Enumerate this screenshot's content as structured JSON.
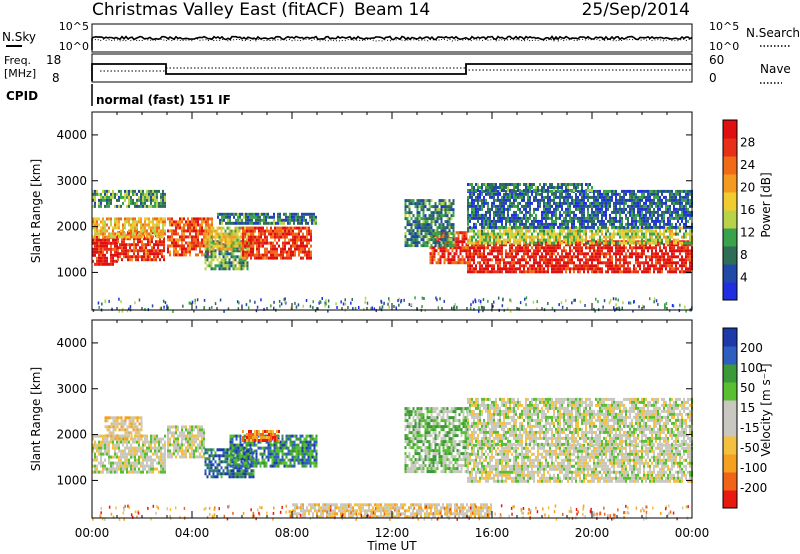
{
  "header": {
    "title": "Christmas Valley East (fitACF)",
    "beam": "Beam 14",
    "date": "25/Sep/2014"
  },
  "aux": {
    "nsky_label": "N.Sky",
    "nsearch_label": "N.Search",
    "freq_label_line1": "Freq.",
    "freq_label_line2": "[MHz]",
    "nave_label": "Nave",
    "cpid_label": "CPID",
    "cpid_value": "normal (fast) 151 IF",
    "noise_ticks_left": [
      "10^5",
      "10^0"
    ],
    "noise_ticks_right": [
      "10^5",
      "10^0"
    ],
    "freq_ticks": [
      "18",
      "8"
    ],
    "nave_ticks": [
      "60",
      "0"
    ]
  },
  "panels": {
    "ylabel": "Slant Range [km]",
    "xlabel": "Time UT",
    "power_cbar_label": "Power [dB]",
    "velocity_cbar_label": "Velocity [m s⁻¹]",
    "y_ticks": [
      "4000",
      "3000",
      "2000",
      "1000"
    ],
    "x_ticks": [
      "00:00",
      "04:00",
      "08:00",
      "12:00",
      "16:00",
      "20:00",
      "00:00"
    ]
  },
  "colors": {
    "power": [
      "#1f2fe0",
      "#2349a8",
      "#2f6e56",
      "#3aa24a",
      "#b8d24a",
      "#f0cc30",
      "#f49a20",
      "#f06a18",
      "#e83018",
      "#e01010"
    ],
    "velocity": [
      "#e81a10",
      "#f06418",
      "#f4a020",
      "#f4c040",
      "#c8c8c0",
      "#c8c8c0",
      "#58c030",
      "#3a9a38",
      "#2d5fc0",
      "#1d3aa8"
    ]
  },
  "chart_data": [
    {
      "type": "heatmap",
      "name": "power",
      "x": [
        0,
        24
      ],
      "ylim": [
        180,
        4500
      ],
      "colorbar": {
        "title": "Power [dB]",
        "ticks": [
          4,
          8,
          12,
          16,
          20,
          24,
          28
        ],
        "range": [
          0,
          30
        ]
      },
      "regions": [
        {
          "t0": 0.0,
          "t1": 1.0,
          "r0": 1200,
          "r1": 1800,
          "level": 28
        },
        {
          "t0": 1.0,
          "t1": 2.9,
          "r0": 1300,
          "r1": 1900,
          "level": 26
        },
        {
          "t0": 0.0,
          "t1": 2.9,
          "r0": 1800,
          "r1": 2200,
          "level": 18
        },
        {
          "t0": 0.0,
          "t1": 2.9,
          "r0": 2450,
          "r1": 2800,
          "level": 10
        },
        {
          "t0": 3.0,
          "t1": 4.8,
          "r0": 1400,
          "r1": 2200,
          "level": 24
        },
        {
          "t0": 4.5,
          "t1": 6.2,
          "r0": 1050,
          "r1": 1700,
          "level": 10
        },
        {
          "t0": 4.5,
          "t1": 6.5,
          "r0": 1500,
          "r1": 2000,
          "level": 16
        },
        {
          "t0": 6.0,
          "t1": 8.8,
          "r0": 1300,
          "r1": 2000,
          "level": 26
        },
        {
          "t0": 5.0,
          "t1": 9.0,
          "r0": 2100,
          "r1": 2300,
          "level": 8
        },
        {
          "t0": 13.5,
          "t1": 15.0,
          "r0": 1200,
          "r1": 1900,
          "level": 26
        },
        {
          "t0": 12.5,
          "t1": 14.5,
          "r0": 1600,
          "r1": 2600,
          "level": 8
        },
        {
          "t0": 15.0,
          "t1": 24.0,
          "r0": 1000,
          "r1": 1700,
          "level": 28
        },
        {
          "t0": 15.0,
          "t1": 24.0,
          "r0": 1650,
          "r1": 2000,
          "level": 14
        },
        {
          "t0": 15.0,
          "t1": 24.0,
          "r0": 2000,
          "r1": 2800,
          "level": 6
        },
        {
          "t0": 15.0,
          "t1": 20.0,
          "r0": 2800,
          "r1": 2950,
          "level": 8
        }
      ]
    },
    {
      "type": "heatmap",
      "name": "velocity",
      "x": [
        0,
        24
      ],
      "ylim": [
        180,
        4500
      ],
      "colorbar": {
        "title": "Velocity [m s⁻¹]",
        "ticks": [
          200,
          100,
          50,
          15,
          -15,
          -50,
          -100,
          -200
        ],
        "range": [
          -250,
          250
        ]
      },
      "regions": [
        {
          "t0": 0.0,
          "t1": 2.9,
          "r0": 1200,
          "r1": 2000,
          "level": 0
        },
        {
          "t0": 0.5,
          "t1": 2.0,
          "r0": 1900,
          "r1": 2400,
          "level": -60
        },
        {
          "t0": 3.0,
          "t1": 4.5,
          "r0": 1500,
          "r1": 2200,
          "level": 0
        },
        {
          "t0": 4.5,
          "t1": 6.5,
          "r0": 1050,
          "r1": 1700,
          "level": 180
        },
        {
          "t0": 5.5,
          "t1": 9.0,
          "r0": 1300,
          "r1": 2000,
          "level": 140
        },
        {
          "t0": 6.0,
          "t1": 7.5,
          "r0": 1900,
          "r1": 2100,
          "level": -160
        },
        {
          "t0": 12.5,
          "t1": 15.0,
          "r0": 1200,
          "r1": 2600,
          "level": 60
        },
        {
          "t0": 15.0,
          "t1": 24.0,
          "r0": 1000,
          "r1": 1800,
          "level": 0
        },
        {
          "t0": 15.0,
          "t1": 24.0,
          "r0": 1800,
          "r1": 2800,
          "level": 5
        },
        {
          "t0": 8.0,
          "t1": 16.0,
          "r0": 180,
          "r1": 500,
          "level": -40
        }
      ]
    }
  ]
}
